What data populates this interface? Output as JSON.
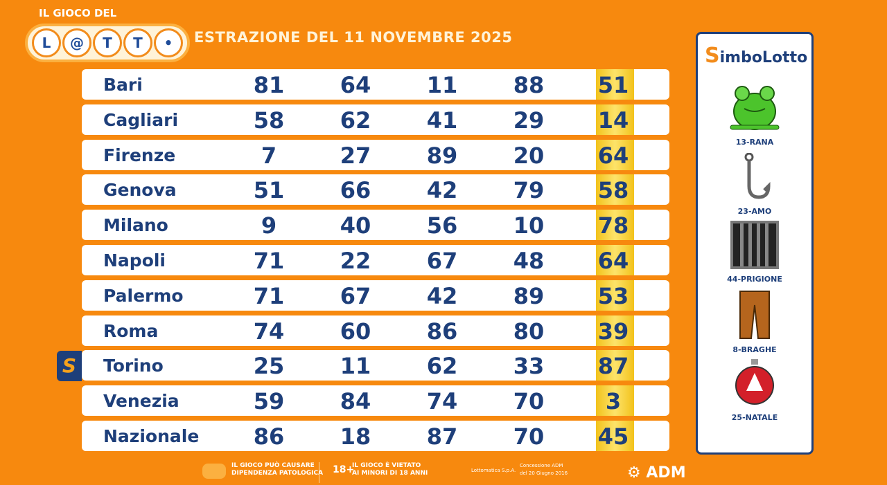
{
  "header": {
    "logo_small": "IL GIOCO DEL",
    "logo_letters": [
      "L",
      "@",
      "T",
      "T",
      "•"
    ],
    "logo_text": "LOTTO",
    "title": "ESTRAZIONE DEL 11 NOVEMBRE 2025"
  },
  "rows": [
    {
      "city": "Bari",
      "numbers": [
        "81",
        "64",
        "11",
        "88",
        "51"
      ]
    },
    {
      "city": "Cagliari",
      "numbers": [
        "58",
        "62",
        "41",
        "29",
        "14"
      ]
    },
    {
      "city": "Firenze",
      "numbers": [
        "7",
        "27",
        "89",
        "20",
        "64"
      ]
    },
    {
      "city": "Genova",
      "numbers": [
        "51",
        "66",
        "42",
        "79",
        "58"
      ]
    },
    {
      "city": "Milano",
      "numbers": [
        "9",
        "40",
        "56",
        "10",
        "78"
      ]
    },
    {
      "city": "Napoli",
      "numbers": [
        "71",
        "22",
        "67",
        "48",
        "64"
      ]
    },
    {
      "city": "Palermo",
      "numbers": [
        "71",
        "67",
        "42",
        "89",
        "53"
      ]
    },
    {
      "city": "Roma",
      "numbers": [
        "74",
        "60",
        "86",
        "80",
        "39"
      ]
    },
    {
      "city": "Torino",
      "numbers": [
        "25",
        "11",
        "62",
        "33",
        "87"
      ]
    },
    {
      "city": "Venezia",
      "numbers": [
        "59",
        "84",
        "74",
        "70",
        "3"
      ]
    },
    {
      "city": "Nazionale",
      "numbers": [
        "86",
        "18",
        "87",
        "70",
        "45"
      ]
    }
  ],
  "simbolotto_badge": "S",
  "simbolotto": {
    "logo_s": "S",
    "logo_rest": "imboLotto",
    "symbols": [
      {
        "label": "13-RANA",
        "icon": "frog-icon"
      },
      {
        "label": "23-AMO",
        "icon": "hook-icon"
      },
      {
        "label": "44-PRIGIONE",
        "icon": "prison-bars-icon"
      },
      {
        "label": "8-BRAGHE",
        "icon": "trousers-icon"
      },
      {
        "label": "25-NATALE",
        "icon": "christmas-ornament-icon"
      }
    ]
  },
  "footer": {
    "warning1_l1": "IL GIOCO PUÒ CAUSARE",
    "warning1_l2": "DIPENDENZA PATOLOGICA",
    "age": "18+",
    "warning2_l1": "IL GIOCO È VIETATO",
    "warning2_l2": "AI MINORI DI 18 ANNI",
    "company": "Lottomatica S.p.A.",
    "concession_l1": "Concessione ADM",
    "concession_l2": "del 20 Giugno 2016",
    "adm": "ADM"
  },
  "colors": {
    "background": "#f7890e",
    "text": "#1e3f7a",
    "highlight": "#f2c21b"
  }
}
